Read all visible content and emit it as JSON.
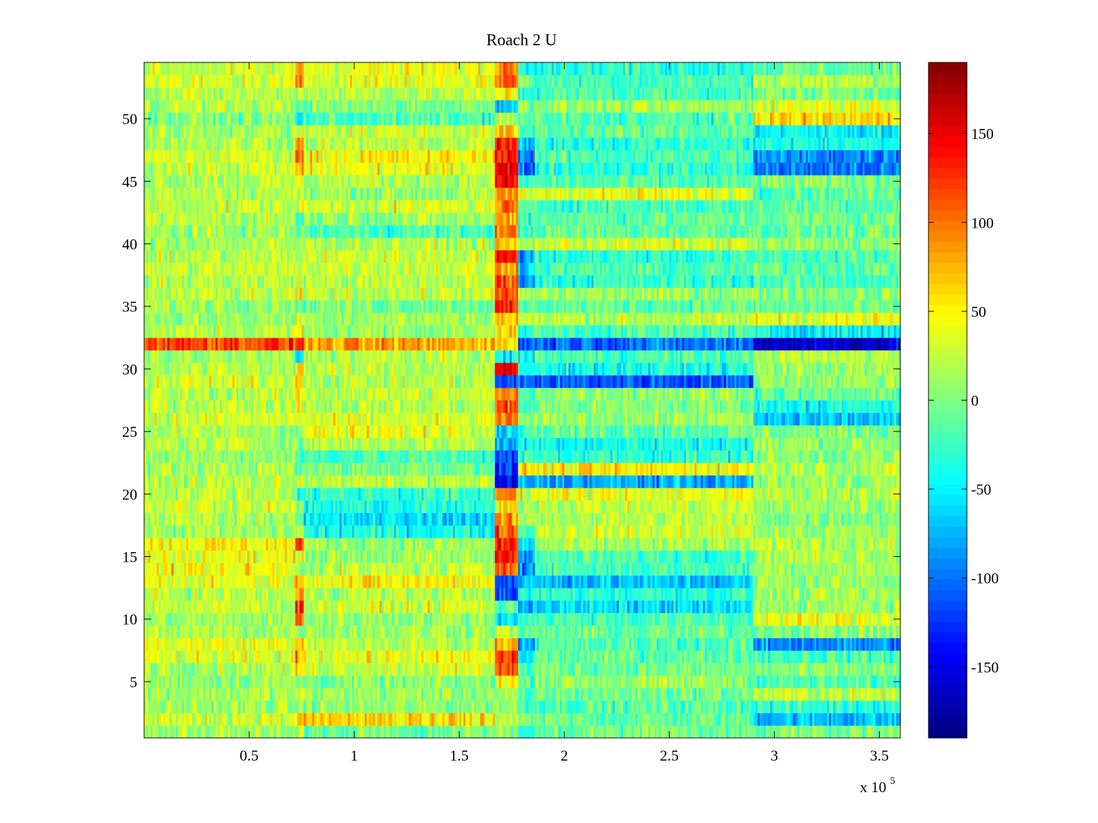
{
  "chart_data": {
    "type": "heatmap",
    "title": "Roach 2 U",
    "xlabel": "",
    "ylabel": "",
    "x_exponent_label": {
      "base": "x 10",
      "exponent": "5"
    },
    "xlim": [
      0,
      360000
    ],
    "ylim": [
      0.5,
      54.5
    ],
    "rows": 54,
    "x_ticks": [
      50000,
      100000,
      150000,
      200000,
      250000,
      300000,
      350000
    ],
    "x_tick_labels": [
      "0.5",
      "1",
      "1.5",
      "2",
      "2.5",
      "3",
      "3.5"
    ],
    "y_ticks": [
      5,
      10,
      15,
      20,
      25,
      30,
      35,
      40,
      45,
      50
    ],
    "y_tick_labels": [
      "5",
      "10",
      "15",
      "20",
      "25",
      "30",
      "35",
      "40",
      "45",
      "50"
    ],
    "colorbar": {
      "colormap": "jet",
      "clim": [
        -190,
        190
      ],
      "ticks": [
        150,
        100,
        50,
        0,
        -50,
        -100,
        -150
      ],
      "tick_labels": [
        "150",
        "100",
        "50",
        "0",
        "-50",
        "-100",
        "-150"
      ]
    },
    "segment_boundaries_x": [
      0,
      72000,
      76000,
      167000,
      178000,
      186000,
      290000,
      360000
    ],
    "row_segment_means": [
      {
        "row": 1,
        "values": [
          10,
          15,
          -5,
          10,
          -40,
          -5,
          0
        ]
      },
      {
        "row": 2,
        "values": [
          30,
          50,
          60,
          20,
          5,
          -10,
          -70
        ]
      },
      {
        "row": 3,
        "values": [
          10,
          0,
          5,
          10,
          -20,
          -15,
          -30
        ]
      },
      {
        "row": 4,
        "values": [
          15,
          20,
          10,
          5,
          -30,
          -5,
          25
        ]
      },
      {
        "row": 5,
        "values": [
          10,
          5,
          0,
          50,
          -10,
          10,
          -20
        ]
      },
      {
        "row": 6,
        "values": [
          20,
          60,
          30,
          110,
          -20,
          -5,
          0
        ]
      },
      {
        "row": 7,
        "values": [
          30,
          90,
          40,
          120,
          -50,
          -10,
          -20
        ]
      },
      {
        "row": 8,
        "values": [
          40,
          80,
          20,
          80,
          -70,
          -20,
          -90
        ]
      },
      {
        "row": 9,
        "values": [
          15,
          20,
          15,
          20,
          -20,
          -10,
          5
        ]
      },
      {
        "row": 10,
        "values": [
          10,
          110,
          10,
          -50,
          -20,
          -20,
          40
        ]
      },
      {
        "row": 11,
        "values": [
          25,
          120,
          30,
          -20,
          -70,
          -60,
          10
        ]
      },
      {
        "row": 12,
        "values": [
          20,
          80,
          20,
          -120,
          -40,
          -30,
          10
        ]
      },
      {
        "row": 13,
        "values": [
          40,
          60,
          50,
          -110,
          -70,
          -70,
          10
        ]
      },
      {
        "row": 14,
        "values": [
          45,
          10,
          20,
          120,
          -90,
          -20,
          15
        ]
      },
      {
        "row": 15,
        "values": [
          40,
          60,
          10,
          140,
          -80,
          -20,
          20
        ]
      },
      {
        "row": 16,
        "values": [
          50,
          120,
          10,
          130,
          -60,
          10,
          20
        ]
      },
      {
        "row": 17,
        "values": [
          10,
          20,
          -40,
          110,
          -20,
          30,
          10
        ]
      },
      {
        "row": 18,
        "values": [
          20,
          10,
          -60,
          80,
          10,
          20,
          5
        ]
      },
      {
        "row": 19,
        "values": [
          30,
          -10,
          -40,
          60,
          20,
          25,
          10
        ]
      },
      {
        "row": 20,
        "values": [
          25,
          -40,
          -30,
          100,
          30,
          40,
          20
        ]
      },
      {
        "row": 21,
        "values": [
          20,
          40,
          20,
          -150,
          -80,
          -80,
          10
        ]
      },
      {
        "row": 22,
        "values": [
          15,
          -20,
          0,
          -130,
          60,
          50,
          20
        ]
      },
      {
        "row": 23,
        "values": [
          10,
          -30,
          -20,
          -120,
          -30,
          -30,
          5
        ]
      },
      {
        "row": 24,
        "values": [
          20,
          -10,
          20,
          -80,
          -40,
          -40,
          10
        ]
      },
      {
        "row": 25,
        "values": [
          15,
          0,
          40,
          -60,
          -20,
          -10,
          0
        ]
      },
      {
        "row": 26,
        "values": [
          30,
          40,
          30,
          100,
          -10,
          10,
          -70
        ]
      },
      {
        "row": 27,
        "values": [
          25,
          60,
          20,
          110,
          -20,
          0,
          -40
        ]
      },
      {
        "row": 28,
        "values": [
          20,
          50,
          25,
          90,
          -20,
          10,
          -10
        ]
      },
      {
        "row": 29,
        "values": [
          30,
          80,
          20,
          -120,
          -100,
          -110,
          10
        ]
      },
      {
        "row": 30,
        "values": [
          20,
          60,
          20,
          140,
          -40,
          -40,
          10
        ]
      },
      {
        "row": 31,
        "values": [
          10,
          -60,
          20,
          -50,
          -40,
          -20,
          20
        ]
      },
      {
        "row": 32,
        "values": [
          120,
          130,
          80,
          60,
          -110,
          -100,
          -160
        ]
      },
      {
        "row": 33,
        "values": [
          20,
          40,
          10,
          60,
          -30,
          -20,
          -50
        ]
      },
      {
        "row": 34,
        "values": [
          10,
          30,
          15,
          70,
          20,
          20,
          40
        ]
      },
      {
        "row": 35,
        "values": [
          15,
          -20,
          0,
          120,
          -20,
          -10,
          -10
        ]
      },
      {
        "row": 36,
        "values": [
          20,
          40,
          25,
          110,
          10,
          10,
          5
        ]
      },
      {
        "row": 37,
        "values": [
          20,
          30,
          20,
          120,
          -90,
          -30,
          -20
        ]
      },
      {
        "row": 38,
        "values": [
          25,
          40,
          30,
          90,
          -60,
          -20,
          -10
        ]
      },
      {
        "row": 39,
        "values": [
          20,
          20,
          30,
          130,
          -80,
          -30,
          -20
        ]
      },
      {
        "row": 40,
        "values": [
          15,
          10,
          20,
          60,
          10,
          30,
          5
        ]
      },
      {
        "row": 41,
        "values": [
          10,
          -10,
          -20,
          90,
          -20,
          -10,
          -10
        ]
      },
      {
        "row": 42,
        "values": [
          20,
          -30,
          10,
          80,
          -20,
          -10,
          -5
        ]
      },
      {
        "row": 43,
        "values": [
          25,
          20,
          30,
          100,
          -30,
          -20,
          -10
        ]
      },
      {
        "row": 44,
        "values": [
          20,
          20,
          10,
          90,
          30,
          40,
          -10
        ]
      },
      {
        "row": 45,
        "values": [
          20,
          30,
          20,
          140,
          -30,
          -20,
          0
        ]
      },
      {
        "row": 46,
        "values": [
          25,
          80,
          40,
          150,
          -110,
          -30,
          -100
        ]
      },
      {
        "row": 47,
        "values": [
          30,
          100,
          50,
          140,
          -90,
          -20,
          -90
        ]
      },
      {
        "row": 48,
        "values": [
          20,
          80,
          20,
          130,
          -80,
          -30,
          -40
        ]
      },
      {
        "row": 49,
        "values": [
          15,
          20,
          30,
          60,
          -20,
          -10,
          -50
        ]
      },
      {
        "row": 50,
        "values": [
          0,
          -60,
          -20,
          10,
          -10,
          -20,
          60
        ]
      },
      {
        "row": 51,
        "values": [
          20,
          -10,
          0,
          -60,
          10,
          10,
          40
        ]
      },
      {
        "row": 52,
        "values": [
          20,
          30,
          20,
          50,
          -30,
          -20,
          0
        ]
      },
      {
        "row": 53,
        "values": [
          30,
          80,
          40,
          110,
          0,
          -20,
          20
        ]
      },
      {
        "row": 54,
        "values": [
          25,
          90,
          40,
          100,
          -20,
          -30,
          -10
        ]
      }
    ]
  }
}
